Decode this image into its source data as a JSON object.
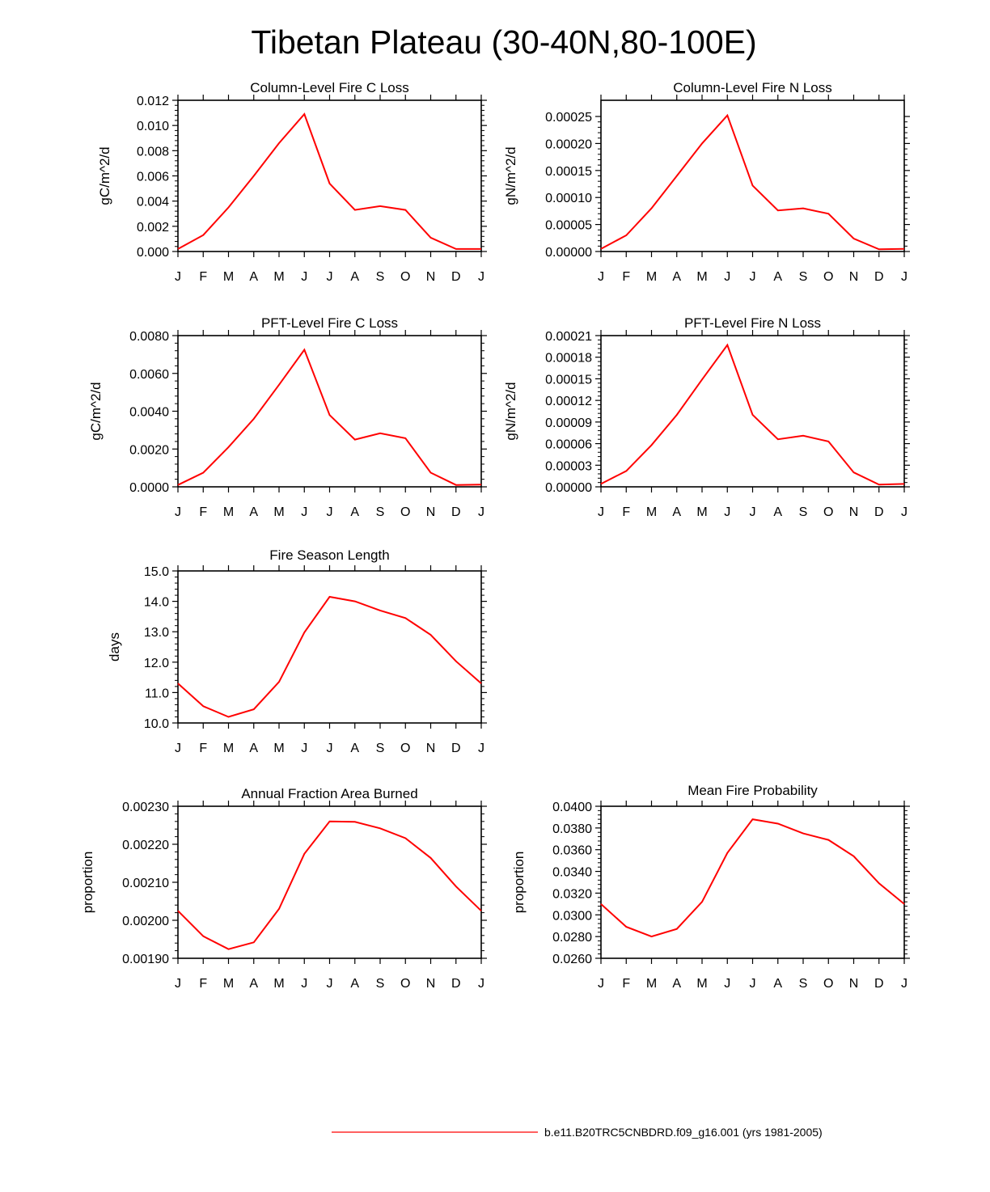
{
  "figure": {
    "title": "Tibetan Plateau (30-40N,80-100E)",
    "legend": {
      "label": "b.e11.B20TRC5CNBDRD.f09_g16.001 (yrs 1981-2005)",
      "line_color": "#ff0000"
    },
    "colors": {
      "series": "#ff0000",
      "axes": "#000000"
    }
  },
  "chart_data": [
    {
      "id": "col_c",
      "type": "line",
      "title": "Column-Level Fire C Loss",
      "xlabel": "",
      "ylabel": "gC/m^2/d",
      "categories": [
        "J",
        "F",
        "M",
        "A",
        "M",
        "J",
        "J",
        "A",
        "S",
        "O",
        "N",
        "D",
        "J"
      ],
      "ylim": [
        0,
        0.012
      ],
      "yticks": [
        0,
        0.002,
        0.004,
        0.006,
        0.008,
        0.01,
        0.012
      ],
      "ytick_labels": [
        "0.000",
        "0.002",
        "0.004",
        "0.006",
        "0.008",
        "0.010",
        "0.012"
      ],
      "series": [
        {
          "name": "b.e11.B20TRC5CNBDRD.f09_g16.001",
          "values": [
            0.0002,
            0.0013,
            0.0035,
            0.006,
            0.0086,
            0.0109,
            0.0054,
            0.0033,
            0.0036,
            0.0033,
            0.0011,
            0.0002,
            0.0002
          ]
        }
      ]
    },
    {
      "id": "col_n",
      "type": "line",
      "title": "Column-Level Fire N Loss",
      "xlabel": "",
      "ylabel": "gN/m^2/d",
      "categories": [
        "J",
        "F",
        "M",
        "A",
        "M",
        "J",
        "J",
        "A",
        "S",
        "O",
        "N",
        "D",
        "J"
      ],
      "ylim": [
        0,
        0.00028
      ],
      "yticks": [
        0,
        5e-05,
        0.0001,
        0.00015,
        0.0002,
        0.00025
      ],
      "ytick_labels": [
        "0.00000",
        "0.00005",
        "0.00010",
        "0.00015",
        "0.00020",
        "0.00025"
      ],
      "series": [
        {
          "name": "b.e11.B20TRC5CNBDRD.f09_g16.001",
          "values": [
            5e-06,
            3e-05,
            8e-05,
            0.00014,
            0.0002,
            0.000252,
            0.000122,
            7.6e-05,
            8e-05,
            7e-05,
            2.4e-05,
            4e-06,
            5e-06
          ]
        }
      ]
    },
    {
      "id": "pft_c",
      "type": "line",
      "title": "PFT-Level Fire C Loss",
      "xlabel": "",
      "ylabel": "gC/m^2/d",
      "categories": [
        "J",
        "F",
        "M",
        "A",
        "M",
        "J",
        "J",
        "A",
        "S",
        "O",
        "N",
        "D",
        "J"
      ],
      "ylim": [
        0,
        0.008
      ],
      "yticks": [
        0,
        0.002,
        0.004,
        0.006,
        0.008
      ],
      "ytick_labels": [
        "0.0000",
        "0.0020",
        "0.0040",
        "0.0060",
        "0.0080"
      ],
      "series": [
        {
          "name": "b.e11.B20TRC5CNBDRD.f09_g16.001",
          "values": [
            0.0001,
            0.00075,
            0.0021,
            0.0036,
            0.0054,
            0.00725,
            0.0038,
            0.0025,
            0.00283,
            0.00257,
            0.00075,
            0.0001,
            0.00012
          ]
        }
      ]
    },
    {
      "id": "pft_n",
      "type": "line",
      "title": "PFT-Level Fire N Loss",
      "xlabel": "",
      "ylabel": "gN/m^2/d",
      "categories": [
        "J",
        "F",
        "M",
        "A",
        "M",
        "J",
        "J",
        "A",
        "S",
        "O",
        "N",
        "D",
        "J"
      ],
      "ylim": [
        0,
        0.00021
      ],
      "yticks": [
        0,
        3e-05,
        6e-05,
        9e-05,
        0.00012,
        0.00015,
        0.00018,
        0.00021
      ],
      "ytick_labels": [
        "0.00000",
        "0.00003",
        "0.00006",
        "0.00009",
        "0.00012",
        "0.00015",
        "0.00018",
        "0.00021"
      ],
      "series": [
        {
          "name": "b.e11.B20TRC5CNBDRD.f09_g16.001",
          "values": [
            4e-06,
            2.2e-05,
            5.8e-05,
            0.0001,
            0.000149,
            0.000197,
            0.0001,
            6.6e-05,
            7.1e-05,
            6.3e-05,
            2e-05,
            3e-06,
            4e-06
          ]
        }
      ]
    },
    {
      "id": "season",
      "type": "line",
      "title": "Fire Season Length",
      "xlabel": "",
      "ylabel": "days",
      "categories": [
        "J",
        "F",
        "M",
        "A",
        "M",
        "J",
        "J",
        "A",
        "S",
        "O",
        "N",
        "D",
        "J"
      ],
      "ylim": [
        10,
        15
      ],
      "yticks": [
        10,
        11,
        12,
        13,
        14,
        15
      ],
      "ytick_labels": [
        "10.0",
        "11.0",
        "12.0",
        "13.0",
        "14.0",
        "15.0"
      ],
      "series": [
        {
          "name": "b.e11.B20TRC5CNBDRD.f09_g16.001",
          "values": [
            11.3,
            10.55,
            10.2,
            10.45,
            11.35,
            12.98,
            14.15,
            14.0,
            13.7,
            13.45,
            12.9,
            12.03,
            11.3
          ]
        }
      ]
    },
    {
      "id": "farea",
      "type": "line",
      "title": "Annual Fraction Area Burned",
      "xlabel": "",
      "ylabel": "proportion",
      "categories": [
        "J",
        "F",
        "M",
        "A",
        "M",
        "J",
        "J",
        "A",
        "S",
        "O",
        "N",
        "D",
        "J"
      ],
      "ylim": [
        0.0019,
        0.0023
      ],
      "yticks": [
        0.0019,
        0.002,
        0.0021,
        0.0022,
        0.0023
      ],
      "ytick_labels": [
        "0.00190",
        "0.00200",
        "0.00210",
        "0.00220",
        "0.00230"
      ],
      "series": [
        {
          "name": "b.e11.B20TRC5CNBDRD.f09_g16.001",
          "values": [
            0.002025,
            0.001958,
            0.001924,
            0.001942,
            0.00203,
            0.002175,
            0.00226,
            0.002259,
            0.002242,
            0.002216,
            0.002164,
            0.002089,
            0.002025
          ]
        }
      ]
    },
    {
      "id": "fprob",
      "type": "line",
      "title": "Mean Fire Probability",
      "xlabel": "",
      "ylabel": "proportion",
      "categories": [
        "J",
        "F",
        "M",
        "A",
        "M",
        "J",
        "J",
        "A",
        "S",
        "O",
        "N",
        "D",
        "J"
      ],
      "ylim": [
        0.026,
        0.04
      ],
      "yticks": [
        0.026,
        0.028,
        0.03,
        0.032,
        0.034,
        0.036,
        0.038,
        0.04
      ],
      "ytick_labels": [
        "0.0260",
        "0.0280",
        "0.0300",
        "0.0320",
        "0.0340",
        "0.0360",
        "0.0380",
        "0.0400"
      ],
      "series": [
        {
          "name": "b.e11.B20TRC5CNBDRD.f09_g16.001",
          "values": [
            0.031,
            0.0289,
            0.028,
            0.0287,
            0.0312,
            0.0357,
            0.0388,
            0.0384,
            0.0375,
            0.0369,
            0.0354,
            0.0329,
            0.031
          ]
        }
      ]
    }
  ]
}
